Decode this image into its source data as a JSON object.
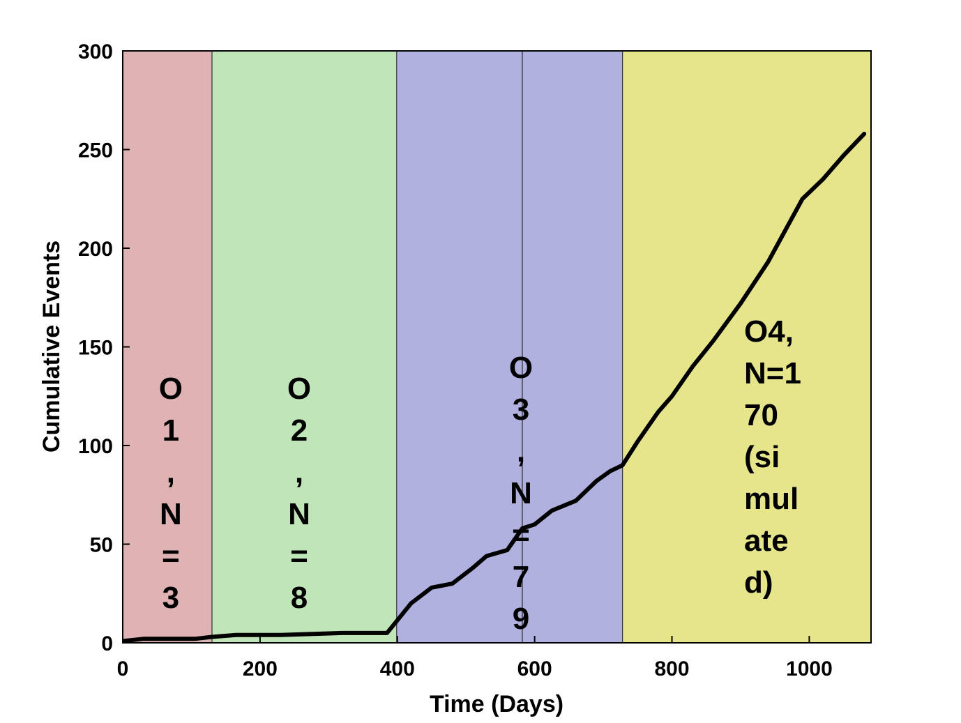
{
  "chart_data": {
    "type": "line",
    "title": "",
    "xlabel": "Time (Days)",
    "ylabel": "Cumulative Events",
    "xlim": [
      0,
      1090
    ],
    "ylim": [
      0,
      300
    ],
    "xticks": [
      0,
      200,
      400,
      600,
      800,
      1000
    ],
    "yticks": [
      0,
      50,
      100,
      150,
      200,
      250,
      300
    ],
    "grid": false,
    "bands": [
      {
        "name": "O1",
        "x0": 0,
        "x1": 130,
        "color": "#dfb3b3",
        "label_lines": [
          "O",
          "1",
          ",",
          "N",
          "=",
          "3"
        ],
        "label_x": 70
      },
      {
        "name": "O2",
        "x0": 130,
        "x1": 399,
        "color": "#c0e5b8",
        "label_lines": [
          "O",
          "2",
          ",",
          "N",
          "=",
          "8"
        ],
        "label_x": 257
      },
      {
        "name": "O3",
        "x0": 399,
        "x1": 728,
        "color": "#b1b1e0",
        "label_lines": [
          "O",
          "3",
          ",",
          "N",
          "=",
          "7",
          "9"
        ],
        "label_x": 580
      },
      {
        "name": "O4",
        "x0": 728,
        "x1": 1090,
        "color": "#e6e58c",
        "label_lines": [
          "O4,",
          "N=1",
          "70",
          "(si",
          "mul",
          "ate",
          "d)"
        ],
        "label_x": 907
      }
    ],
    "divider_x": 582,
    "series": [
      {
        "name": "Cumulative Events",
        "color": "#000000",
        "x": [
          2,
          30,
          105,
          130,
          165,
          230,
          320,
          385,
          399,
          420,
          450,
          480,
          510,
          530,
          560,
          582,
          600,
          625,
          660,
          690,
          710,
          728,
          750,
          780,
          800,
          830,
          860,
          900,
          940,
          990,
          1020,
          1050,
          1080
        ],
        "y": [
          1,
          2,
          2,
          3,
          4,
          4,
          5,
          5,
          11,
          20,
          28,
          30,
          38,
          44,
          47,
          58,
          60,
          67,
          72,
          82,
          87,
          90,
          102,
          117,
          125,
          140,
          153,
          172,
          193,
          225,
          235,
          247,
          258
        ]
      }
    ]
  }
}
